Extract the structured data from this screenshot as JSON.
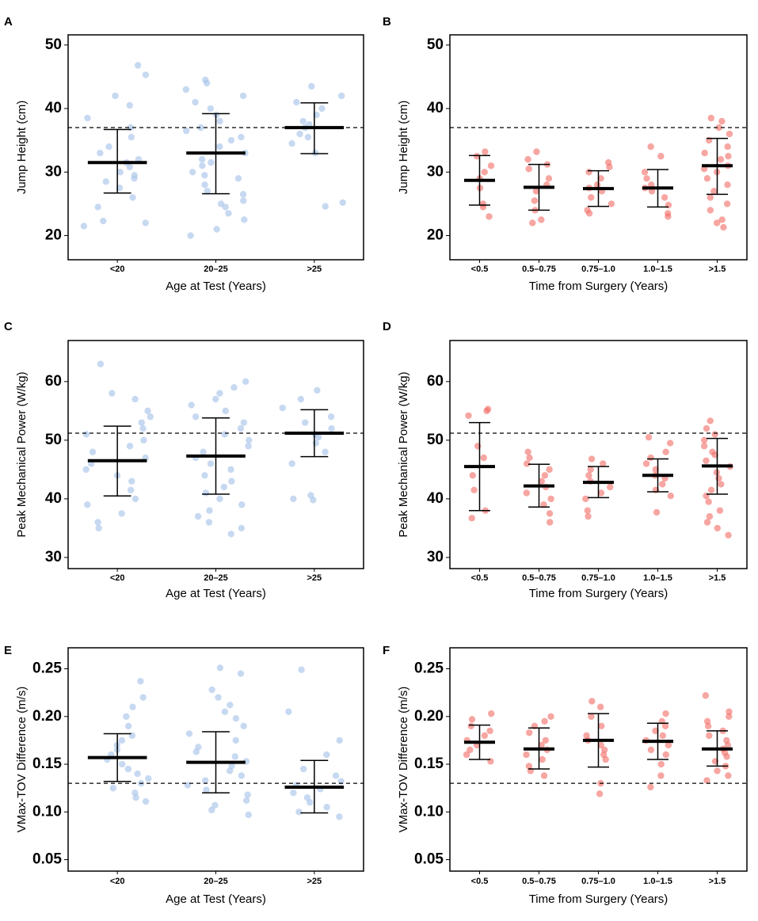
{
  "chart_data": [
    {
      "type": "strip",
      "panel": "A",
      "ylabel": "Jump Height (cm)",
      "xlabel": "Age at Test (Years)",
      "color": "#a9c4ea",
      "categories": [
        "<20",
        "20–25",
        ">25"
      ],
      "ylim": [
        16.2,
        51.6
      ],
      "yticks": [
        20,
        30,
        40,
        50
      ],
      "reference": 37,
      "means": [
        31.5,
        33,
        37
      ],
      "lower": [
        26.7,
        26.6,
        32.9
      ],
      "upper": [
        36.7,
        39.2,
        40.9
      ],
      "points": [
        [
          21.5,
          22,
          22.3,
          24.5,
          26,
          27.5,
          28.5,
          29,
          29.5,
          30,
          30.8,
          31.5,
          32,
          33,
          34,
          35.5,
          37,
          38.5,
          40.5,
          42,
          45.3,
          46.8
        ],
        [
          20,
          21,
          22.5,
          23.5,
          24.5,
          25,
          25.5,
          26.5,
          27,
          28,
          29,
          29.5,
          30,
          31,
          31.5,
          32,
          33,
          34,
          35,
          35.5,
          36.5,
          37,
          38,
          39,
          40,
          41,
          42,
          43,
          44,
          44.5
        ],
        [
          24.6,
          25.2,
          33,
          34.5,
          35.5,
          36,
          37,
          37.5,
          38,
          39,
          40,
          41,
          42,
          43.5
        ]
      ]
    },
    {
      "type": "strip",
      "panel": "B",
      "ylabel": "Jump Height (cm)",
      "xlabel": "Time from Surgery (Years)",
      "color": "#f26b64",
      "categories": [
        "<0.5",
        "0.5–0.75",
        "0.75–1.0",
        "1.0–1.5",
        ">1.5"
      ],
      "ylim": [
        16.2,
        51.6
      ],
      "yticks": [
        20,
        30,
        40,
        50
      ],
      "reference": 37,
      "means": [
        28.7,
        27.6,
        27.4,
        27.5,
        31
      ],
      "lower": [
        24.8,
        24,
        24.6,
        24.5,
        26.5
      ],
      "upper": [
        32.6,
        31.2,
        30.2,
        30.4,
        35.3
      ],
      "points": [
        [
          23,
          24.5,
          25,
          27.5,
          29,
          30,
          31,
          32.5,
          33.2
        ],
        [
          22,
          22.5,
          24,
          25.5,
          27,
          28,
          29,
          30.5,
          31.2,
          32,
          33.2
        ],
        [
          23.5,
          24,
          25,
          26,
          27,
          27.5,
          28,
          29,
          30,
          30.8,
          31.5
        ],
        [
          23,
          23.5,
          24.8,
          26,
          27,
          27.5,
          28,
          29,
          30,
          32.5,
          34
        ],
        [
          21.3,
          22,
          22.5,
          24,
          25,
          26,
          27,
          28,
          29,
          30,
          30.5,
          31,
          32,
          32.5,
          33,
          34,
          35,
          36,
          37,
          38,
          38.5
        ]
      ]
    },
    {
      "type": "strip",
      "panel": "C",
      "ylabel": "Peak Mechanical Power (W/kg)",
      "xlabel": "Age at Test (Years)",
      "color": "#a9c4ea",
      "categories": [
        "<20",
        "20–25",
        ">25"
      ],
      "ylim": [
        28.1,
        67
      ],
      "yticks": [
        30,
        40,
        50,
        60
      ],
      "reference": 51.2,
      "means": [
        46.5,
        47.3,
        51.2
      ],
      "lower": [
        40.5,
        40.8,
        47.2
      ],
      "upper": [
        52.4,
        53.8,
        55.2
      ],
      "points": [
        [
          35,
          36,
          37.5,
          39,
          40,
          41.5,
          43,
          44,
          45,
          46,
          47,
          48,
          49,
          50,
          51,
          52,
          53,
          54,
          55,
          57,
          58,
          63
        ],
        [
          34,
          35,
          36,
          37,
          38,
          39,
          40,
          41,
          42,
          43,
          44,
          45,
          46,
          47,
          48,
          49,
          50,
          51,
          52,
          53,
          54,
          55,
          56,
          57,
          58,
          59,
          60
        ],
        [
          39.8,
          40,
          40.6,
          46,
          48,
          49.5,
          50.5,
          51,
          52,
          53,
          54,
          55.5,
          57,
          58.5
        ]
      ]
    },
    {
      "type": "strip",
      "panel": "D",
      "ylabel": "Peak Mechanical Power (W/kg)",
      "xlabel": "Time from Surgery (Years)",
      "color": "#f26b64",
      "categories": [
        "<0.5",
        "0.5–0.75",
        "0.75–1.0",
        "1.0–1.5",
        ">1.5"
      ],
      "ylim": [
        28.1,
        67
      ],
      "yticks": [
        30,
        40,
        50,
        60
      ],
      "reference": 51.2,
      "means": [
        45.5,
        42.2,
        42.8,
        44,
        45.6
      ],
      "lower": [
        38,
        38.6,
        40.2,
        41.2,
        40.8
      ],
      "upper": [
        53,
        45.9,
        45.5,
        46.8,
        50.3
      ],
      "points": [
        [
          36.7,
          38,
          41.5,
          44,
          47,
          49,
          54.2,
          55,
          55.3
        ],
        [
          36,
          37.5,
          39,
          40,
          41,
          42,
          43,
          44,
          45,
          46,
          47,
          48
        ],
        [
          37,
          38,
          40,
          41,
          42,
          43,
          44,
          45,
          46,
          46.8
        ],
        [
          37.7,
          40.5,
          41.5,
          42.5,
          43.5,
          44,
          45,
          46,
          47,
          48,
          49.5,
          50.5
        ],
        [
          33.8,
          35,
          36,
          37,
          38,
          39.5,
          40.5,
          41.5,
          42.5,
          43.5,
          44.5,
          45.5,
          46.5,
          47.5,
          48,
          49,
          50,
          51,
          52,
          53.3
        ]
      ]
    },
    {
      "type": "strip",
      "panel": "E",
      "ylabel": "VMax-TOV Difference (m/s)",
      "xlabel": "Age at Test (Years)",
      "color": "#a9c4ea",
      "categories": [
        "<20",
        "20–25",
        ">25"
      ],
      "ylim": [
        0.038,
        0.272
      ],
      "yticks": [
        0.05,
        {
          "value": 0.1,
          "label": "0.10"
        },
        0.15,
        {
          "value": 0.2,
          "label": "0.20"
        },
        0.25
      ],
      "reference": 0.13,
      "means": [
        0.157,
        0.152,
        0.126
      ],
      "lower": [
        0.132,
        0.12,
        0.099
      ],
      "upper": [
        0.182,
        0.184,
        0.154
      ],
      "points": [
        [
          0.111,
          0.115,
          0.12,
          0.125,
          0.13,
          0.135,
          0.14,
          0.145,
          0.15,
          0.155,
          0.16,
          0.165,
          0.17,
          0.175,
          0.18,
          0.19,
          0.2,
          0.21,
          0.22,
          0.237
        ],
        [
          0.097,
          0.102,
          0.107,
          0.112,
          0.118,
          0.123,
          0.128,
          0.133,
          0.138,
          0.143,
          0.148,
          0.153,
          0.158,
          0.163,
          0.168,
          0.175,
          0.182,
          0.19,
          0.198,
          0.205,
          0.212,
          0.22,
          0.228,
          0.245,
          0.251
        ],
        [
          0.095,
          0.1,
          0.105,
          0.11,
          0.115,
          0.12,
          0.124,
          0.128,
          0.132,
          0.138,
          0.145,
          0.16,
          0.175,
          0.205,
          0.249
        ]
      ]
    },
    {
      "type": "strip",
      "panel": "F",
      "ylabel": "VMax-TOV Difference (m/s)",
      "xlabel": "Time from Surgery (Years)",
      "color": "#f26b64",
      "categories": [
        "<0.5",
        "0.5–0.75",
        "0.75–1.0",
        "1.0–1.5",
        ">1.5"
      ],
      "ylim": [
        0.038,
        0.272
      ],
      "yticks": [
        0.05,
        {
          "value": 0.1,
          "label": "0.10"
        },
        0.15,
        {
          "value": 0.2,
          "label": "0.20"
        },
        0.25
      ],
      "reference": 0.13,
      "means": [
        0.173,
        0.166,
        0.175,
        0.174,
        0.166
      ],
      "lower": [
        0.155,
        0.145,
        0.147,
        0.155,
        0.148
      ],
      "upper": [
        0.191,
        0.188,
        0.203,
        0.193,
        0.185
      ],
      "points": [
        [
          0.153,
          0.16,
          0.165,
          0.17,
          0.175,
          0.18,
          0.185,
          0.19,
          0.197,
          0.203
        ],
        [
          0.138,
          0.143,
          0.148,
          0.155,
          0.16,
          0.165,
          0.17,
          0.175,
          0.183,
          0.19,
          0.195,
          0.2
        ],
        [
          0.119,
          0.13,
          0.155,
          0.16,
          0.165,
          0.17,
          0.175,
          0.18,
          0.19,
          0.2,
          0.21,
          0.216
        ],
        [
          0.126,
          0.138,
          0.15,
          0.16,
          0.165,
          0.17,
          0.175,
          0.18,
          0.185,
          0.19,
          0.195,
          0.203
        ],
        [
          0.133,
          0.138,
          0.143,
          0.148,
          0.153,
          0.158,
          0.162,
          0.166,
          0.17,
          0.175,
          0.18,
          0.185,
          0.19,
          0.195,
          0.2,
          0.205,
          0.222
        ]
      ]
    }
  ]
}
